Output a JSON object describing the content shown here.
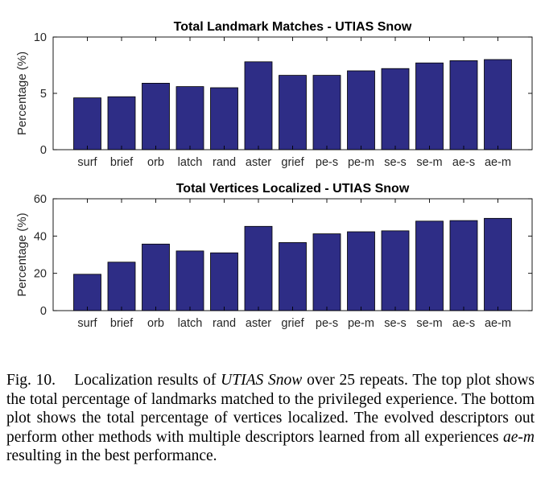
{
  "chart_data": [
    {
      "type": "bar",
      "title": "Total Landmark Matches - UTIAS Snow",
      "xlabel": "",
      "ylabel": "Percentage (%)",
      "categories": [
        "surf",
        "brief",
        "orb",
        "latch",
        "rand",
        "aster",
        "grief",
        "pe-s",
        "pe-m",
        "se-s",
        "se-m",
        "ae-s",
        "ae-m"
      ],
      "values": [
        4.6,
        4.7,
        5.9,
        5.6,
        5.5,
        7.8,
        6.6,
        6.6,
        7.0,
        7.2,
        7.7,
        7.9,
        8.0
      ],
      "ylim": [
        0,
        10
      ],
      "yticks": [
        0,
        5,
        10
      ],
      "grid": false,
      "bar_color": "#2e2d86"
    },
    {
      "type": "bar",
      "title": "Total Vertices Localized - UTIAS Snow",
      "xlabel": "",
      "ylabel": "Percentage (%)",
      "categories": [
        "surf",
        "brief",
        "orb",
        "latch",
        "rand",
        "aster",
        "grief",
        "pe-s",
        "pe-m",
        "se-s",
        "se-m",
        "ae-s",
        "ae-m"
      ],
      "values": [
        19.5,
        26.0,
        35.7,
        32.0,
        31.0,
        45.2,
        36.5,
        41.2,
        42.3,
        42.8,
        48.0,
        48.3,
        49.5
      ],
      "ylim": [
        0,
        60
      ],
      "yticks": [
        0,
        20,
        40,
        60
      ],
      "grid": false,
      "bar_color": "#2e2d86"
    }
  ],
  "caption": {
    "label": "Fig. 10.",
    "text_1": "Localization results of ",
    "dataset": "UTIAS Snow",
    "text_2": " over 25 repeats. The top plot shows the total percentage of landmarks matched to the privileged experience. The bottom plot shows the total percentage of vertices localized. The evolved descriptors out perform other methods with multiple descriptors learned from all experiences ",
    "method": "ae-m",
    "text_3": " resulting in the best performance."
  }
}
